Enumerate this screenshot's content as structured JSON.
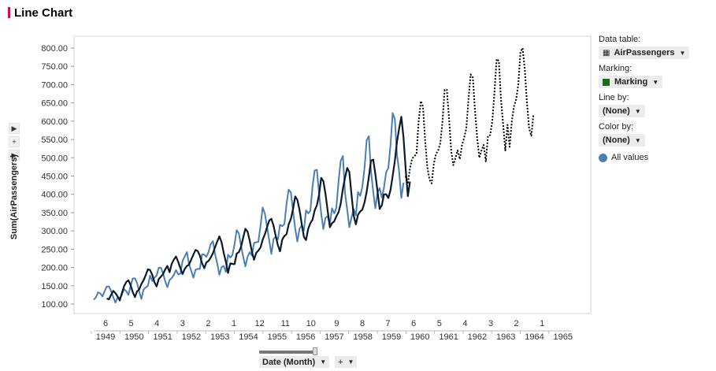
{
  "title": "Line Chart",
  "colors": {
    "accent": "#e0006b",
    "series_all": "#4a7fb5",
    "series_marked": "#0b1a2a",
    "marking": "#1a6e1a",
    "forecast": "#000000",
    "grid": "#e6e6e6"
  },
  "left_controls": {
    "expand_label": "▶",
    "add_label": "+",
    "expand2_label": "▶"
  },
  "y_axis_selector": "Sum(AirPassengers)",
  "x_axis_selector": {
    "label": "Date (Month)",
    "plus": "+"
  },
  "panel": {
    "data_table_label": "Data table:",
    "data_table_value": "AirPassengers",
    "marking_label": "Marking:",
    "marking_value": "Marking",
    "line_by_label": "Line by:",
    "line_by_value": "(None)",
    "color_by_label": "Color by:",
    "color_by_value": "(None)",
    "legend_item": "All values"
  },
  "chart_data": {
    "type": "line",
    "title": "Line Chart",
    "ylabel": "Sum(AirPassengers)",
    "xlabel": "Date (Month)",
    "ylim": [
      100,
      800
    ],
    "yticks": [
      "100.00",
      "150.00",
      "200.00",
      "250.00",
      "300.00",
      "350.00",
      "400.00",
      "450.00",
      "500.00",
      "550.00",
      "600.00",
      "650.00",
      "700.00",
      "750.00",
      "800.00"
    ],
    "x_start": "1949-01",
    "x_month_labels": [
      "6",
      "5",
      "4",
      "3",
      "2",
      "1",
      "12",
      "11",
      "10",
      "9",
      "8",
      "7",
      "6",
      "5",
      "4",
      "3",
      "2",
      "1"
    ],
    "x_year_labels": [
      "1949",
      "1950",
      "1951",
      "1952",
      "1953",
      "1954",
      "1955",
      "1956",
      "1957",
      "1958",
      "1959",
      "1960",
      "1961",
      "1962",
      "1963",
      "1964",
      "1965"
    ],
    "grid": false,
    "series": [
      {
        "name": "All values",
        "start": "1949-01",
        "values": [
          112,
          118,
          132,
          129,
          121,
          135,
          148,
          148,
          136,
          119,
          104,
          118,
          115,
          126,
          141,
          135,
          125,
          149,
          170,
          170,
          158,
          133,
          114,
          140,
          145,
          150,
          178,
          163,
          172,
          178,
          199,
          199,
          184,
          162,
          146,
          166,
          171,
          180,
          193,
          181,
          183,
          218,
          230,
          242,
          209,
          191,
          172,
          194,
          196,
          196,
          236,
          235,
          229,
          243,
          264,
          272,
          237,
          211,
          180,
          201,
          204,
          188,
          235,
          227,
          234,
          264,
          302,
          293,
          259,
          229,
          203,
          229,
          242,
          233,
          267,
          269,
          270,
          315,
          364,
          347,
          312,
          274,
          237,
          278,
          284,
          277,
          317,
          313,
          318,
          374,
          413,
          405,
          355,
          306,
          271,
          306,
          315,
          301,
          356,
          348,
          355,
          422,
          465,
          467,
          404,
          347,
          305,
          336,
          340,
          318,
          362,
          348,
          363,
          435,
          491,
          505,
          404,
          359,
          310,
          337,
          360,
          342,
          406,
          396,
          420,
          472,
          548,
          559,
          463,
          407,
          362,
          405,
          417,
          391,
          419,
          461,
          472,
          535,
          622,
          606,
          508,
          461,
          390,
          432
        ]
      },
      {
        "name": "",
        "start": "1949-07",
        "values": [
          115,
          113,
          125,
          136,
          130,
          121,
          110,
          130,
          149,
          160,
          165,
          152,
          133,
          119,
          135,
          140,
          155,
          165,
          179,
          195,
          193,
          180,
          160,
          148,
          168,
          175,
          182,
          195,
          204,
          187,
          210,
          222,
          230,
          215,
          198,
          182,
          196,
          204,
          208,
          222,
          235,
          248,
          245,
          232,
          212,
          198,
          214,
          218,
          227,
          239,
          255,
          271,
          285,
          269,
          240,
          215,
          185,
          211,
          210,
          209,
          238,
          242,
          256,
          282,
          306,
          298,
          274,
          243,
          221,
          240,
          246,
          255,
          276,
          291,
          310,
          328,
          333,
          314,
          287,
          261,
          244,
          276,
          286,
          291,
          318,
          333,
          360,
          394,
          385,
          357,
          320,
          284,
          275,
          306,
          321,
          331,
          356,
          370,
          398,
          445,
          436,
          400,
          355,
          310,
          321,
          326,
          340,
          351,
          374,
          415,
          445,
          472,
          461,
          398,
          342,
          318,
          344,
          353,
          358,
          378,
          407,
          448,
          492,
          495,
          456,
          408,
          360,
          370,
          400,
          400,
          390,
          412,
          450,
          492,
          544,
          581,
          612,
          555,
          470,
          395,
          435
        ]
      },
      {
        "name": "",
        "start": "1961-01",
        "values": [
          450,
          428,
          472,
          498,
          504,
          510,
          600,
          655,
          640,
          545,
          475,
          440,
          430,
          484,
          510,
          520,
          540,
          600,
          686,
          686,
          610,
          520,
          480,
          500,
          520,
          496,
          534,
          555,
          580,
          660,
          728,
          719,
          630,
          555,
          500,
          520,
          535,
          490,
          560,
          562,
          600,
          680,
          770,
          765,
          660,
          590,
          520,
          590,
          530,
          600,
          640,
          660,
          700,
          790,
          800,
          740,
          650,
          580,
          560,
          620
        ]
      }
    ]
  }
}
